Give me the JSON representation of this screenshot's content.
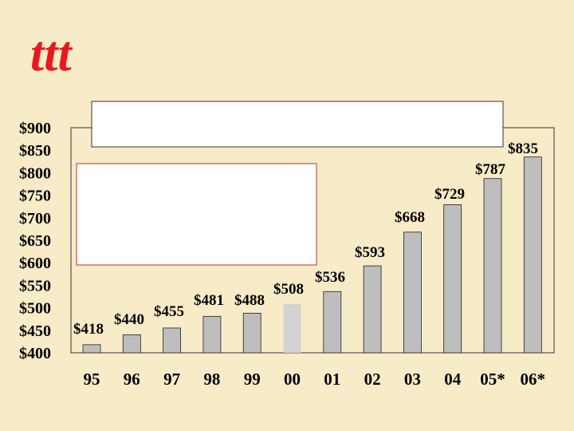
{
  "logo": {
    "text": "ttt"
  },
  "colors": {
    "background": "#f8ebc8",
    "logo": "#e8191e",
    "rule_left": "#e8191e",
    "rule_right": "#2b3bd9",
    "bar_fill": "#bebebe",
    "special_bar_fill": "#d3d3d3",
    "inner_box_border": "#c0302a"
  },
  "title_box": {
    "text": ""
  },
  "note_box": {
    "text": ""
  },
  "chart_data": {
    "type": "bar",
    "title": "",
    "xlabel": "",
    "ylabel": "",
    "ylim": [
      400,
      900
    ],
    "y_ticks": [
      "$400",
      "$450",
      "$500",
      "$550",
      "$600",
      "$650",
      "$700",
      "$750",
      "$800",
      "$850",
      "$900"
    ],
    "y_tick_values": [
      400,
      450,
      500,
      550,
      600,
      650,
      700,
      750,
      800,
      850,
      900
    ],
    "categories": [
      "95",
      "96",
      "97",
      "98",
      "99",
      "00",
      "01",
      "02",
      "03",
      "04",
      "05*",
      "06*"
    ],
    "values": [
      418,
      440,
      455,
      481,
      488,
      508,
      536,
      593,
      668,
      729,
      787,
      835
    ],
    "data_labels": [
      "$418",
      "$440",
      "$455",
      "$481",
      "$488",
      "$508",
      "$536",
      "$593",
      "$668",
      "$729",
      "$787",
      "$835"
    ],
    "highlight_index": 5,
    "grid": false
  }
}
